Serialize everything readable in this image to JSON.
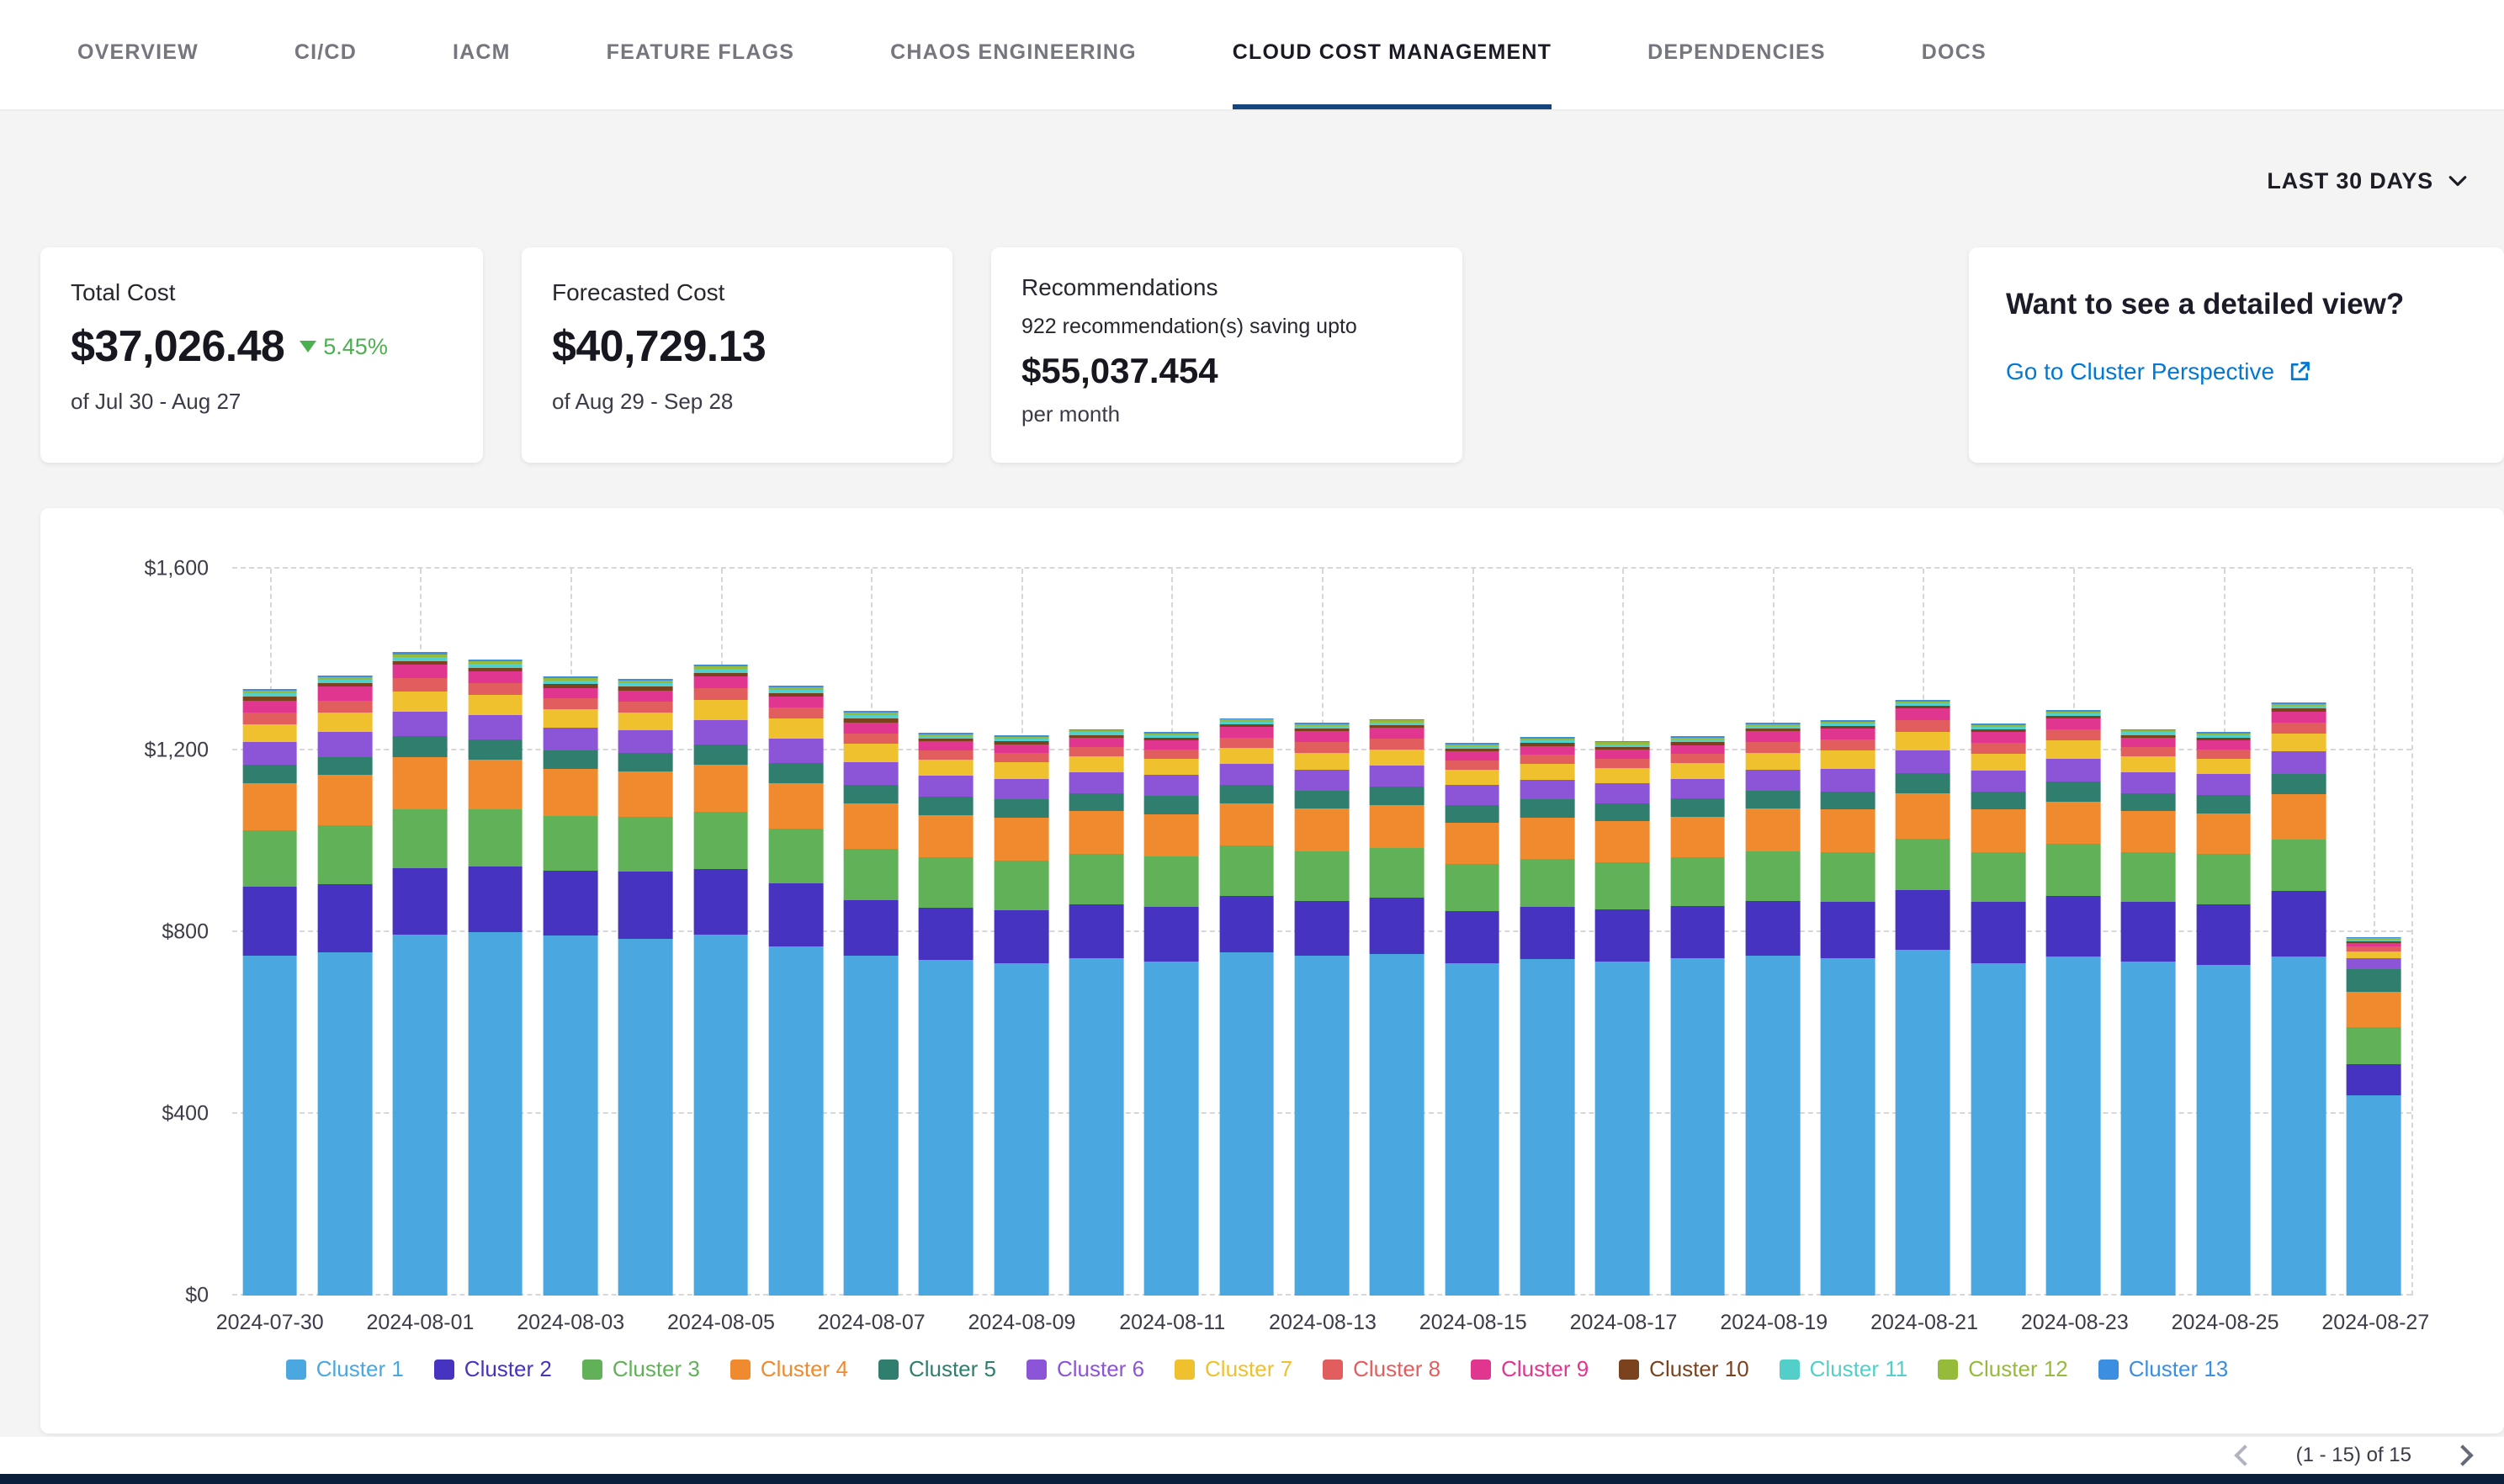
{
  "nav": {
    "tabs": [
      "OVERVIEW",
      "CI/CD",
      "IACM",
      "FEATURE FLAGS",
      "CHAOS ENGINEERING",
      "CLOUD COST MANAGEMENT",
      "DEPENDENCIES",
      "DOCS"
    ],
    "active_tab": "CLOUD COST MANAGEMENT"
  },
  "filters": {
    "date_range_label": "LAST 30 DAYS"
  },
  "cards": {
    "total_cost": {
      "title": "Total Cost",
      "value": "$37,026.48",
      "change": "5.45%",
      "change_direction": "down",
      "period": "of Jul 30 - Aug 27"
    },
    "forecasted_cost": {
      "title": "Forecasted Cost",
      "value": "$40,729.13",
      "period": "of Aug 29 - Sep 28"
    },
    "recommendations": {
      "title": "Recommendations",
      "subtitle": "922 recommendation(s) saving upto",
      "value": "$55,037.454",
      "period": "per month"
    },
    "detail_view": {
      "title": "Want to see a detailed view?",
      "link_label": "Go to Cluster Perspective"
    }
  },
  "pagination": {
    "label": "(1 - 15) of 15"
  },
  "icons": {
    "date_range": "chevron-down",
    "total_cost_trend": "triangle-down",
    "detail_link": "external-link",
    "pagination_prev": "chevron-left",
    "pagination_next": "chevron-right"
  },
  "colors": {
    "accent_link": "#0278d5",
    "active_tab_underline": "#16457e",
    "trend_green": "#4CAF50",
    "bottom_bar_navy": "#0a1f3c"
  },
  "chart_data": {
    "type": "bar",
    "stacked": true,
    "title": "",
    "xlabel": "",
    "ylabel": "",
    "ylim": [
      0,
      1600
    ],
    "y_ticks": [
      "$0",
      "$400",
      "$800",
      "$1,200",
      "$1,600"
    ],
    "x_tick_every": 2,
    "grid": "dashed",
    "legend_position": "bottom",
    "x": [
      "2024-07-30",
      "2024-07-31",
      "2024-08-01",
      "2024-08-02",
      "2024-08-03",
      "2024-08-04",
      "2024-08-05",
      "2024-08-06",
      "2024-08-07",
      "2024-08-08",
      "2024-08-09",
      "2024-08-10",
      "2024-08-11",
      "2024-08-12",
      "2024-08-13",
      "2024-08-14",
      "2024-08-15",
      "2024-08-16",
      "2024-08-17",
      "2024-08-18",
      "2024-08-19",
      "2024-08-20",
      "2024-08-21",
      "2024-08-22",
      "2024-08-23",
      "2024-08-24",
      "2024-08-25",
      "2024-08-26",
      "2024-08-27"
    ],
    "series": [
      {
        "name": "Cluster 1",
        "color": "#4BA7E0",
        "values": [
          748,
          756,
          795,
          800,
          792,
          786,
          795,
          768,
          748,
          738,
          732,
          742,
          736,
          756,
          748,
          752,
          732,
          740,
          736,
          742,
          748,
          742,
          762,
          732,
          746,
          736,
          728,
          746,
          440
        ]
      },
      {
        "name": "Cluster 2",
        "color": "#4634C0",
        "values": [
          152,
          150,
          146,
          144,
          144,
          148,
          144,
          140,
          122,
          116,
          116,
          120,
          120,
          124,
          120,
          124,
          114,
          116,
          114,
          116,
          120,
          124,
          130,
          134,
          134,
          130,
          134,
          144,
          70
        ]
      },
      {
        "name": "Cluster 3",
        "color": "#60B158",
        "values": [
          124,
          130,
          130,
          126,
          120,
          120,
          126,
          120,
          114,
          110,
          110,
          110,
          110,
          110,
          110,
          110,
          104,
          106,
          104,
          106,
          110,
          110,
          114,
          110,
          114,
          110,
          110,
          114,
          80
        ]
      },
      {
        "name": "Cluster 4",
        "color": "#EF8A2E",
        "values": [
          104,
          110,
          114,
          110,
          104,
          100,
          104,
          100,
          100,
          94,
          94,
          94,
          94,
          94,
          94,
          94,
          90,
          90,
          90,
          90,
          94,
          94,
          100,
          94,
          94,
          90,
          90,
          100,
          78
        ]
      },
      {
        "name": "Cluster 5",
        "color": "#2F7E6E",
        "values": [
          40,
          40,
          46,
          44,
          40,
          40,
          44,
          44,
          40,
          40,
          40,
          40,
          40,
          40,
          40,
          40,
          40,
          40,
          40,
          40,
          40,
          40,
          44,
          40,
          44,
          40,
          40,
          44,
          50
        ]
      },
      {
        "name": "Cluster 6",
        "color": "#8C54D6",
        "values": [
          50,
          54,
          54,
          54,
          50,
          50,
          54,
          54,
          50,
          46,
          46,
          46,
          46,
          46,
          46,
          46,
          44,
          44,
          44,
          44,
          46,
          50,
          50,
          46,
          50,
          46,
          46,
          50,
          24
        ]
      },
      {
        "name": "Cluster 7",
        "color": "#EFC12F",
        "values": [
          40,
          44,
          44,
          44,
          40,
          40,
          44,
          44,
          40,
          36,
          36,
          36,
          36,
          36,
          36,
          36,
          34,
          34,
          34,
          34,
          36,
          40,
          40,
          36,
          40,
          36,
          34,
          40,
          16
        ]
      },
      {
        "name": "Cluster 8",
        "color": "#E25D5D",
        "values": [
          26,
          26,
          30,
          26,
          24,
          24,
          26,
          24,
          24,
          20,
          20,
          20,
          20,
          22,
          24,
          24,
          20,
          20,
          20,
          20,
          24,
          24,
          26,
          24,
          24,
          20,
          20,
          24,
          10
        ]
      },
      {
        "name": "Cluster 9",
        "color": "#E0368F",
        "values": [
          26,
          30,
          30,
          26,
          24,
          24,
          26,
          24,
          24,
          20,
          20,
          20,
          20,
          24,
          24,
          24,
          20,
          20,
          20,
          20,
          24,
          24,
          26,
          24,
          24,
          20,
          20,
          24,
          8
        ]
      },
      {
        "name": "Cluster 10",
        "color": "#7A431D",
        "values": [
          8,
          8,
          8,
          8,
          8,
          8,
          8,
          8,
          8,
          6,
          6,
          6,
          6,
          6,
          6,
          6,
          6,
          6,
          6,
          6,
          6,
          6,
          6,
          6,
          6,
          6,
          6,
          6,
          4
        ]
      },
      {
        "name": "Cluster 11",
        "color": "#53CFC9",
        "values": [
          8,
          8,
          8,
          8,
          8,
          8,
          8,
          8,
          8,
          6,
          6,
          6,
          6,
          6,
          6,
          6,
          6,
          6,
          6,
          6,
          6,
          6,
          6,
          6,
          6,
          6,
          6,
          6,
          4
        ]
      },
      {
        "name": "Cluster 12",
        "color": "#96BB3A",
        "values": [
          5,
          5,
          6,
          6,
          5,
          5,
          6,
          5,
          5,
          4,
          4,
          4,
          4,
          4,
          4,
          4,
          4,
          4,
          4,
          4,
          4,
          4,
          4,
          4,
          4,
          4,
          4,
          4,
          3
        ]
      },
      {
        "name": "Cluster 13",
        "color": "#3C8FE0",
        "values": [
          4,
          4,
          5,
          5,
          4,
          4,
          5,
          4,
          4,
          3,
          3,
          3,
          3,
          3,
          3,
          3,
          3,
          3,
          3,
          3,
          3,
          3,
          3,
          3,
          3,
          3,
          3,
          3,
          2
        ]
      }
    ]
  }
}
